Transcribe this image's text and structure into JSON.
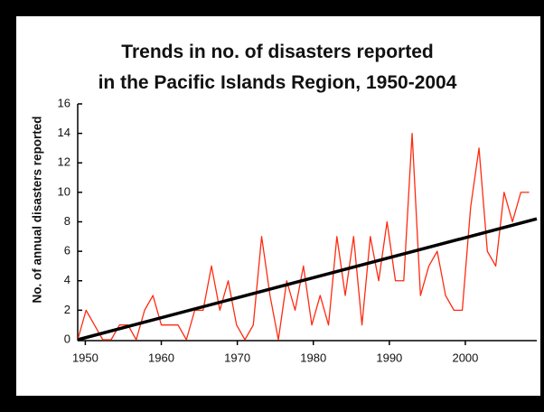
{
  "chart_data": {
    "type": "line",
    "title": [
      "Trends in no. of disasters reported",
      "in the Pacific Islands Region, 1950-2004"
    ],
    "y_label": "No. of annual disasters reported",
    "xlim": [
      1949,
      2009.4
    ],
    "ylim": [
      0,
      16
    ],
    "xticks": [
      1950,
      1960,
      1970,
      1980,
      1990,
      2000
    ],
    "yticks": [
      0,
      2,
      4,
      6,
      8,
      10,
      12,
      14,
      16
    ],
    "series": [
      {
        "color": "#ff2a10",
        "x": [
          1949,
          1950.1,
          1951.2,
          1952.3,
          1953.4,
          1954.5,
          1955.6,
          1956.7,
          1957.8,
          1958.9,
          1960,
          1961.1,
          1962.2,
          1963.3,
          1964.4,
          1965.5,
          1966.6,
          1967.7,
          1968.8,
          1969.9,
          1971,
          1972.1,
          1973.2,
          1974.3,
          1975.4,
          1976.5,
          1977.6,
          1978.7,
          1979.8,
          1980.9,
          1982,
          1983.1,
          1984.2,
          1985.3,
          1986.4,
          1987.5,
          1988.6,
          1989.7,
          1990.8,
          1991.9,
          1993,
          1994.1,
          1995.2,
          1996.3,
          1997.4,
          1998.5,
          1999.6,
          2000.7,
          2001.8,
          2002.9,
          2004,
          2005.1,
          2006.2,
          2007.3,
          2008.4
        ],
        "values": [
          0,
          2,
          1,
          0,
          0,
          1,
          1,
          0,
          2,
          3,
          1,
          1,
          1,
          0,
          2,
          2,
          5,
          2,
          4,
          1,
          0,
          1,
          7,
          3,
          0,
          4,
          2,
          5,
          1,
          3,
          1,
          7,
          3,
          7,
          1,
          7,
          4,
          8,
          4,
          4,
          14,
          3,
          5,
          6,
          3,
          2,
          2,
          9,
          13,
          6,
          5,
          10,
          8,
          10,
          10
        ],
        "width": 1.3
      },
      {
        "color": "#000000",
        "x": [
          1949,
          2009.4
        ],
        "values": [
          0,
          8.2
        ],
        "width": 3.5
      }
    ]
  }
}
